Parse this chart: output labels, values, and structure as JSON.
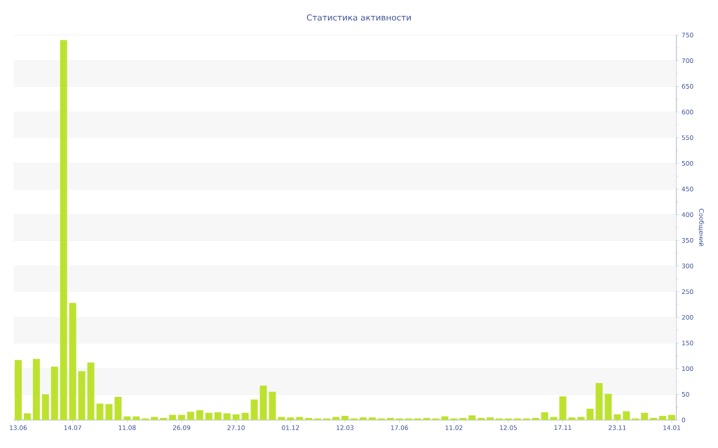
{
  "chart_data": {
    "type": "bar",
    "title": "Статистика активности",
    "ylabel": "Сообщений",
    "categories": [
      "13.06",
      null,
      null,
      null,
      null,
      null,
      "14.07",
      null,
      null,
      null,
      null,
      null,
      "11.08",
      null,
      null,
      null,
      null,
      null,
      "26.09",
      null,
      null,
      null,
      null,
      null,
      "27.10",
      null,
      null,
      null,
      null,
      null,
      "01.12",
      null,
      null,
      null,
      null,
      null,
      "12.03",
      null,
      null,
      null,
      null,
      null,
      "17.06",
      null,
      null,
      null,
      null,
      null,
      "11.02",
      null,
      null,
      null,
      null,
      null,
      "12.05",
      null,
      null,
      null,
      null,
      null,
      "17.11",
      null,
      null,
      null,
      null,
      null,
      "23.11",
      null,
      null,
      null,
      null,
      null,
      "14.01"
    ],
    "values": [
      117,
      13,
      119,
      50,
      104,
      740,
      228,
      95,
      112,
      32,
      31,
      45,
      7,
      7,
      3,
      6,
      4,
      10,
      10,
      16,
      19,
      14,
      15,
      13,
      11,
      14,
      40,
      67,
      55,
      6,
      5,
      6,
      4,
      3,
      3,
      6,
      8,
      3,
      5,
      5,
      3,
      4,
      3,
      3,
      3,
      4,
      3,
      7,
      3,
      4,
      9,
      4,
      5,
      3,
      3,
      3,
      3,
      4,
      15,
      6,
      46,
      5,
      6,
      22,
      72,
      51,
      11,
      17,
      3,
      14,
      4,
      8,
      10
    ],
    "color": "#bce22f",
    "ylim": [
      0,
      750
    ],
    "yticks": [
      0,
      50,
      100,
      150,
      200,
      250,
      300,
      350,
      400,
      450,
      500,
      550,
      600,
      650,
      700,
      750
    ],
    "grid": "y"
  }
}
